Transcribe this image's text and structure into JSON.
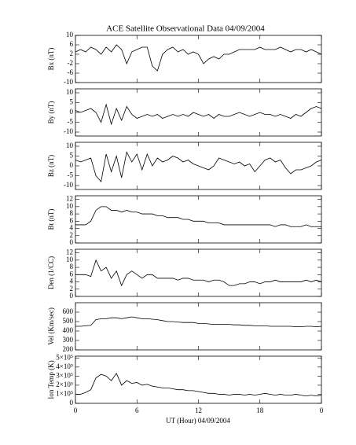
{
  "chart_data": [
    {
      "type": "line",
      "title": "ACE Satellite Observational Data   04/09/2004",
      "ylabel": "Bx (nT)",
      "color": "#000000",
      "x": [
        0,
        0.5,
        1,
        1.5,
        2,
        2.5,
        3,
        3.5,
        4,
        4.5,
        5,
        5.5,
        6,
        6.5,
        7,
        7.5,
        8,
        8.5,
        9,
        9.5,
        10,
        10.5,
        11,
        11.5,
        12,
        12.5,
        13,
        13.5,
        14,
        14.5,
        15,
        15.5,
        16,
        16.5,
        17,
        17.5,
        18,
        18.5,
        19,
        19.5,
        20,
        20.5,
        21,
        21.5,
        22,
        22.5,
        23,
        23.5,
        24
      ],
      "values": [
        3,
        4,
        3,
        5,
        4,
        2,
        5,
        3,
        6,
        4,
        -2,
        3,
        4,
        5,
        5,
        -3,
        -5,
        2,
        4,
        5,
        3,
        4,
        2,
        3,
        2,
        -2,
        0,
        1,
        0,
        2,
        2,
        3,
        4,
        4,
        4,
        4,
        5,
        4,
        4,
        4,
        5,
        4,
        3,
        4,
        4,
        3,
        4,
        3,
        2
      ],
      "ylim": [
        -10,
        10
      ],
      "yticks": [
        -10,
        -6,
        -2,
        2,
        6,
        10
      ]
    },
    {
      "type": "line",
      "ylabel": "By (nT)",
      "color": "#000000",
      "x": [
        0,
        0.5,
        1,
        1.5,
        2,
        2.5,
        3,
        3.5,
        4,
        4.5,
        5,
        5.5,
        6,
        6.5,
        7,
        7.5,
        8,
        8.5,
        9,
        9.5,
        10,
        10.5,
        11,
        11.5,
        12,
        12.5,
        13,
        13.5,
        14,
        14.5,
        15,
        15.5,
        16,
        16.5,
        17,
        17.5,
        18,
        18.5,
        19,
        19.5,
        20,
        20.5,
        21,
        21.5,
        22,
        22.5,
        23,
        23.5,
        24
      ],
      "values": [
        1,
        0,
        1,
        2,
        0,
        -5,
        4,
        -6,
        2,
        -4,
        3,
        -1,
        -3,
        -2,
        -1,
        -2,
        -1,
        -3,
        -2,
        -1,
        -2,
        -1,
        -2,
        0,
        -1,
        -2,
        -1,
        -3,
        -1,
        -2,
        -2,
        -1,
        0,
        -1,
        -2,
        -1,
        0,
        -1,
        -1,
        -2,
        -1,
        -2,
        -3,
        -1,
        -2,
        0,
        2,
        3,
        2
      ],
      "ylim": [
        -12,
        12
      ],
      "yticks": [
        -10,
        -5,
        0,
        5,
        10
      ]
    },
    {
      "type": "line",
      "ylabel": "Bz (nT)",
      "color": "#000000",
      "x": [
        0,
        0.5,
        1,
        1.5,
        2,
        2.5,
        3,
        3.5,
        4,
        4.5,
        5,
        5.5,
        6,
        6.5,
        7,
        7.5,
        8,
        8.5,
        9,
        9.5,
        10,
        10.5,
        11,
        11.5,
        12,
        12.5,
        13,
        13.5,
        14,
        14.5,
        15,
        15.5,
        16,
        16.5,
        17,
        17.5,
        18,
        18.5,
        19,
        19.5,
        20,
        20.5,
        21,
        21.5,
        22,
        22.5,
        23,
        23.5,
        24
      ],
      "values": [
        3,
        2,
        3,
        4,
        -5,
        -8,
        6,
        -3,
        5,
        -6,
        7,
        2,
        6,
        -2,
        6,
        0,
        4,
        2,
        3,
        5,
        4,
        2,
        3,
        1,
        0,
        -1,
        -2,
        0,
        4,
        3,
        2,
        1,
        2,
        0,
        1,
        -3,
        0,
        3,
        4,
        2,
        3,
        -1,
        -4,
        -2,
        -2,
        -1,
        0,
        2,
        3
      ],
      "ylim": [
        -12,
        12
      ],
      "yticks": [
        -10,
        -5,
        0,
        5,
        10
      ]
    },
    {
      "type": "line",
      "ylabel": "Bt (nT)",
      "color": "#000000",
      "x": [
        0,
        0.5,
        1,
        1.5,
        2,
        2.5,
        3,
        3.5,
        4,
        4.5,
        5,
        5.5,
        6,
        6.5,
        7,
        7.5,
        8,
        8.5,
        9,
        9.5,
        10,
        10.5,
        11,
        11.5,
        12,
        12.5,
        13,
        13.5,
        14,
        14.5,
        15,
        15.5,
        16,
        16.5,
        17,
        17.5,
        18,
        18.5,
        19,
        19.5,
        20,
        20.5,
        21,
        21.5,
        22,
        22.5,
        23,
        23.5,
        24
      ],
      "values": [
        5,
        5,
        5,
        6,
        9,
        10,
        10,
        9,
        9,
        8.5,
        9,
        8.5,
        8.5,
        8,
        8,
        8,
        7.5,
        7.5,
        7,
        7,
        7,
        6.5,
        6.5,
        6,
        6,
        6,
        5.5,
        5.5,
        5.5,
        5,
        5,
        5,
        5,
        5,
        5,
        5,
        5,
        5,
        5,
        4.5,
        5,
        5,
        4.5,
        4.5,
        4.5,
        5,
        4.5,
        4.5,
        4.5
      ],
      "ylim": [
        0,
        13
      ],
      "yticks": [
        0,
        2,
        4,
        6,
        8,
        10,
        12
      ]
    },
    {
      "type": "line",
      "ylabel": "Den (1/CC)",
      "color": "#000000",
      "x": [
        0,
        0.5,
        1,
        1.5,
        2,
        2.5,
        3,
        3.5,
        4,
        4.5,
        5,
        5.5,
        6,
        6.5,
        7,
        7.5,
        8,
        8.5,
        9,
        9.5,
        10,
        10.5,
        11,
        11.5,
        12,
        12.5,
        13,
        13.5,
        14,
        14.5,
        15,
        15.5,
        16,
        16.5,
        17,
        17.5,
        18,
        18.5,
        19,
        19.5,
        20,
        20.5,
        21,
        21.5,
        22,
        22.5,
        23,
        23.5,
        24
      ],
      "values": [
        6,
        6,
        6,
        5.5,
        10,
        7,
        8,
        5,
        7,
        3,
        6,
        7,
        6,
        5,
        6,
        6,
        5,
        5,
        5,
        5,
        4.5,
        5,
        5,
        4.5,
        4.5,
        4.5,
        4,
        4.5,
        4.5,
        4,
        3,
        3,
        3.5,
        3.5,
        4,
        4,
        3.5,
        4,
        4,
        4.5,
        4,
        4,
        4,
        4,
        4,
        4.5,
        4,
        4.5,
        4
      ],
      "ylim": [
        0,
        13
      ],
      "yticks": [
        0,
        2,
        4,
        6,
        8,
        10,
        12
      ]
    },
    {
      "type": "line",
      "ylabel": "Vel (Km/sec)",
      "color": "#000000",
      "x": [
        0,
        0.5,
        1,
        1.5,
        2,
        2.5,
        3,
        3.5,
        4,
        4.5,
        5,
        5.5,
        6,
        6.5,
        7,
        7.5,
        8,
        8.5,
        9,
        9.5,
        10,
        10.5,
        11,
        11.5,
        12,
        12.5,
        13,
        13.5,
        14,
        14.5,
        15,
        15.5,
        16,
        16.5,
        17,
        17.5,
        18,
        18.5,
        19,
        19.5,
        20,
        20.5,
        21,
        21.5,
        22,
        22.5,
        23,
        23.5,
        24
      ],
      "values": [
        450,
        450,
        455,
        460,
        520,
        530,
        530,
        540,
        540,
        530,
        540,
        550,
        540,
        530,
        530,
        525,
        520,
        510,
        500,
        500,
        495,
        490,
        490,
        490,
        480,
        480,
        475,
        470,
        470,
        470,
        470,
        465,
        465,
        460,
        460,
        455,
        455,
        455,
        450,
        450,
        450,
        450,
        450,
        445,
        445,
        450,
        450,
        445,
        450
      ],
      "ylim": [
        200,
        700
      ],
      "yticks": [
        200,
        300,
        400,
        500,
        600
      ]
    },
    {
      "type": "line",
      "ylabel": "Ion Temp (K)",
      "xlabel": "UT (Hour)  04/09/2004",
      "color": "#000000",
      "x": [
        0,
        0.5,
        1,
        1.5,
        2,
        2.5,
        3,
        3.5,
        4,
        4.5,
        5,
        5.5,
        6,
        6.5,
        7,
        7.5,
        8,
        8.5,
        9,
        9.5,
        10,
        10.5,
        11,
        11.5,
        12,
        12.5,
        13,
        13.5,
        14,
        14.5,
        15,
        15.5,
        16,
        16.5,
        17,
        17.5,
        18,
        18.5,
        19,
        19.5,
        20,
        20.5,
        21,
        21.5,
        22,
        22.5,
        23,
        23.5,
        24
      ],
      "values": [
        100000,
        100000,
        120000,
        150000,
        280000,
        320000,
        300000,
        250000,
        330000,
        200000,
        250000,
        220000,
        230000,
        200000,
        210000,
        190000,
        180000,
        170000,
        170000,
        160000,
        150000,
        150000,
        140000,
        140000,
        130000,
        120000,
        110000,
        110000,
        100000,
        100000,
        90000,
        100000,
        100000,
        90000,
        100000,
        90000,
        100000,
        110000,
        100000,
        90000,
        100000,
        90000,
        90000,
        100000,
        90000,
        80000,
        90000,
        80000,
        90000
      ],
      "ylim": [
        0,
        520000
      ],
      "yticks": [
        0,
        {
          "value": 100000,
          "label": "1×10⁵"
        },
        {
          "value": 200000,
          "label": "2×10⁵"
        },
        {
          "value": 300000,
          "label": "3×10⁵"
        },
        {
          "value": 400000,
          "label": "4×10⁵"
        },
        {
          "value": 500000,
          "label": "5×10⁵"
        }
      ],
      "xlim": [
        0,
        24
      ],
      "xticks": [
        0,
        6,
        12,
        18,
        {
          "value": 24,
          "label": "0"
        }
      ]
    }
  ]
}
